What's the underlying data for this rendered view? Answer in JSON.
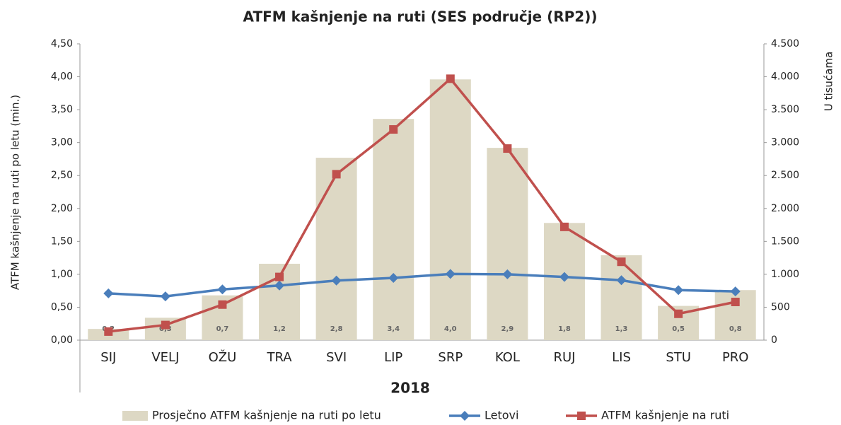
{
  "chart_data": {
    "type": "bar",
    "title": "ATFM kašnjenje na ruti (SES područje (RP2))",
    "x_label": "2018",
    "y_label": "ATFM kašnjenje na ruti po letu (min.)",
    "y2_label": "U tisućama",
    "categories": [
      "SIJ",
      "VELJ",
      "OŽU",
      "TRA",
      "SVI",
      "LIP",
      "SRP",
      "KOL",
      "RUJ",
      "LIS",
      "STU",
      "PRO"
    ],
    "series": [
      {
        "name": "Prosječno ATFM kašnjenje na ruti po letu",
        "type": "bar",
        "color": "#ddd8c4",
        "values": [
          0.17,
          0.34,
          0.68,
          1.16,
          2.77,
          3.36,
          3.96,
          2.92,
          1.78,
          1.29,
          0.52,
          0.76
        ],
        "value_labels": [
          "0,2",
          "0,3",
          "0,7",
          "1,2",
          "2,8",
          "3,4",
          "4,0",
          "2,9",
          "1,8",
          "1,3",
          "0,5",
          "0,8"
        ]
      },
      {
        "name": "Letovi",
        "type": "line",
        "axis": "y2",
        "color": "#4a7ebb",
        "marker": "diamond",
        "values": [
          710,
          665,
          770,
          830,
          905,
          945,
          1005,
          1000,
          960,
          910,
          760,
          740
        ]
      },
      {
        "name": "ATFM kašnjenje na ruti",
        "type": "line",
        "axis": "y2",
        "color": "#c0504d",
        "marker": "square",
        "values": [
          130,
          230,
          540,
          960,
          2520,
          3200,
          3970,
          2910,
          1720,
          1190,
          400,
          580
        ]
      }
    ],
    "ylim": [
      0,
      4.5
    ],
    "yticks": [
      {
        "value": 0,
        "label": "0,00"
      },
      {
        "value": 0.5,
        "label": "0,50"
      },
      {
        "value": 1,
        "label": "1,00"
      },
      {
        "value": 1.5,
        "label": "1,50"
      },
      {
        "value": 2,
        "label": "2,00"
      },
      {
        "value": 2.5,
        "label": "2,50"
      },
      {
        "value": 3,
        "label": "3,00"
      },
      {
        "value": 3.5,
        "label": "3,50"
      },
      {
        "value": 4,
        "label": "4,00"
      },
      {
        "value": 4.5,
        "label": "4,50"
      }
    ],
    "y2lim": [
      0,
      4500
    ],
    "y2ticks": [
      0,
      500,
      {
        "value": 1000,
        "label": "1.000"
      },
      {
        "value": 1500,
        "label": "1.500"
      },
      {
        "value": 2000,
        "label": "2.000"
      },
      {
        "value": 2500,
        "label": "2.500"
      },
      {
        "value": 3000,
        "label": "3.000"
      },
      {
        "value": 3500,
        "label": "3.500"
      },
      {
        "value": 4000,
        "label": "4.000"
      },
      {
        "value": 4500,
        "label": "4.500"
      }
    ]
  }
}
